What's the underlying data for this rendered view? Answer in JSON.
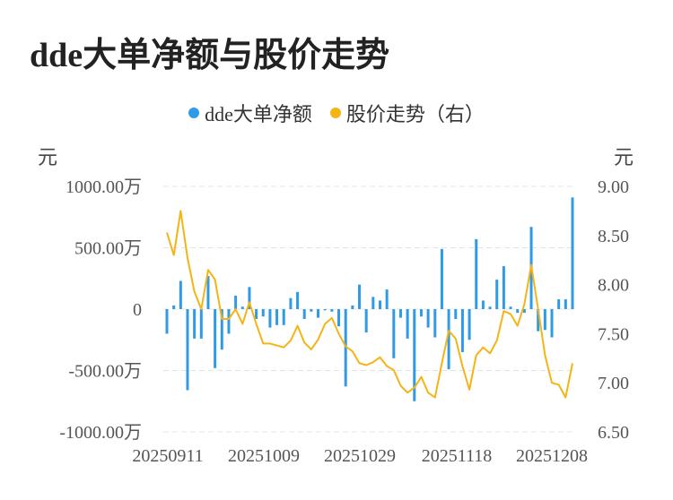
{
  "title": "dde大单净额与股价走势",
  "legend": {
    "bar_label": "dde大单净额",
    "line_label": "股价走势（右）"
  },
  "units": {
    "left": "元",
    "right": "元"
  },
  "colors": {
    "bar": "#2f9be6",
    "line": "#f5b416",
    "grid": "#e4e4e4"
  },
  "chart_data": {
    "type": "bar+line",
    "title": "dde大单净额与股价走势",
    "x_tick_labels": [
      "20250911",
      "20251009",
      "20251029",
      "20251118",
      "20251208"
    ],
    "y_left": {
      "ticks": [
        1000,
        500,
        0,
        -500,
        -1000
      ],
      "tick_labels": [
        "1000.00万",
        "500.00万",
        "0",
        "-500.00万",
        "-1000.00万"
      ],
      "range": [
        -1000,
        1000
      ],
      "unit": "万元"
    },
    "y_right": {
      "ticks": [
        9.0,
        8.5,
        8.0,
        7.5,
        7.0,
        6.5
      ],
      "tick_labels": [
        "9.00",
        "8.50",
        "8.00",
        "7.50",
        "7.00",
        "6.50"
      ],
      "range": [
        6.5,
        9.0
      ],
      "unit": "元"
    },
    "series": [
      {
        "name": "dde大单净额",
        "type": "bar",
        "axis": "left",
        "values": [
          -200,
          30,
          230,
          -660,
          -240,
          -240,
          270,
          -480,
          -330,
          -200,
          110,
          20,
          180,
          -80,
          -60,
          -150,
          -130,
          -130,
          90,
          140,
          -80,
          -20,
          -70,
          -10,
          -20,
          -140,
          -630,
          30,
          200,
          -190,
          100,
          70,
          160,
          -400,
          -70,
          -240,
          -750,
          -60,
          -150,
          -230,
          490,
          -490,
          -80,
          -350,
          -250,
          570,
          70,
          20,
          240,
          350,
          20,
          -30,
          -30,
          670,
          -180,
          -170,
          -230,
          80,
          80,
          910
        ]
      },
      {
        "name": "股价走势（右）",
        "type": "line",
        "axis": "right",
        "values": [
          8.53,
          8.3,
          8.75,
          8.27,
          7.93,
          7.75,
          8.15,
          8.05,
          7.65,
          7.65,
          7.75,
          7.6,
          7.82,
          7.6,
          7.4,
          7.4,
          7.38,
          7.36,
          7.43,
          7.58,
          7.41,
          7.34,
          7.44,
          7.6,
          7.66,
          7.5,
          7.37,
          7.32,
          7.2,
          7.18,
          7.21,
          7.26,
          7.17,
          7.13,
          6.97,
          6.9,
          6.95,
          7.06,
          6.9,
          6.85,
          7.2,
          7.53,
          7.45,
          7.17,
          6.93,
          7.28,
          7.36,
          7.3,
          7.43,
          7.73,
          7.7,
          7.58,
          7.8,
          8.2,
          7.75,
          7.28,
          7.0,
          6.98,
          6.85,
          7.2
        ]
      }
    ]
  }
}
